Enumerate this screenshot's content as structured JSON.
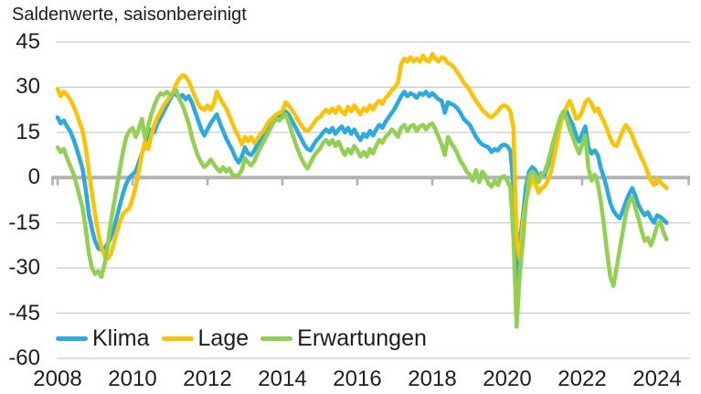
{
  "chart_data": {
    "type": "line",
    "title": "Saldenwerte, saisonbereinigt",
    "xlabel": "",
    "ylabel": "",
    "x_start_year": 2008,
    "x_step_months": 1,
    "x_end": "2024-04",
    "xlim": [
      2007.8,
      2024.9
    ],
    "ylim": [
      -60,
      45
    ],
    "y_ticks": [
      45,
      30,
      15,
      0,
      -15,
      -30,
      -45,
      -60
    ],
    "x_ticks": [
      2008,
      2010,
      2012,
      2014,
      2016,
      2018,
      2020,
      2022,
      2024
    ],
    "x_tick_labels": [
      "2008",
      "2010",
      "2012",
      "2014",
      "2016",
      "2018",
      "2020",
      "2022",
      "2024"
    ],
    "grid": "horizontal",
    "legend_position": "inside-bottom-left",
    "colors": {
      "grid": "#cccccc",
      "zero_axis": "#b3b3b3",
      "text": "#1d1d1b",
      "background": "#ffffff"
    },
    "series": [
      {
        "name": "Klima",
        "color": "#29abe2",
        "values": [
          20,
          18,
          19,
          17,
          15.5,
          13,
          10,
          6.5,
          3,
          -4,
          -12,
          -17,
          -21,
          -23.5,
          -24,
          -23.5,
          -22,
          -20,
          -17,
          -13,
          -9,
          -5,
          -2,
          0,
          1,
          2,
          5,
          8,
          11,
          14,
          16,
          15,
          18,
          20,
          22,
          24,
          26,
          28,
          27.5,
          26.5,
          27.5,
          26,
          27,
          25,
          22,
          19,
          16,
          14,
          16,
          18,
          19.5,
          21,
          18,
          15.5,
          13,
          11,
          9,
          6.5,
          5,
          7,
          10,
          8,
          7.5,
          9,
          11,
          12.5,
          14,
          15.5,
          17,
          18.5,
          19.5,
          20,
          20.5,
          22,
          21,
          19,
          17,
          15,
          13,
          11,
          9.5,
          9,
          11,
          12.5,
          13.5,
          15,
          16,
          15,
          16.5,
          14.5,
          16,
          17,
          15,
          16.5,
          14.5,
          16,
          14,
          12.5,
          14.5,
          13.5,
          15.5,
          14,
          16,
          17.5,
          16.5,
          18.5,
          20,
          21.5,
          23,
          25,
          27,
          28.5,
          27,
          28,
          27.5,
          26.5,
          28,
          27.5,
          28.5,
          27,
          28,
          27,
          26,
          25.5,
          21.5,
          25,
          24.5,
          24,
          23,
          21.5,
          19.5,
          18.5,
          17.5,
          15.5,
          13.5,
          12,
          11,
          10.5,
          10,
          8.5,
          9.5,
          9,
          10.5,
          11,
          10.5,
          9,
          -3,
          -34,
          -21,
          -13,
          -3,
          2,
          3.5,
          2.5,
          0,
          1.5,
          1,
          4,
          7.5,
          12,
          15.5,
          19.5,
          21.5,
          22,
          19.5,
          17.5,
          14,
          12,
          14.5,
          17,
          10,
          8,
          9,
          7.5,
          3,
          0,
          -4,
          -8.5,
          -11,
          -12.5,
          -13.5,
          -11,
          -8,
          -5.5,
          -3.5,
          -6,
          -9,
          -11,
          -12.5,
          -11.5,
          -13.5,
          -15,
          -12.5,
          -13,
          -14,
          -15
        ]
      },
      {
        "name": "Lage",
        "color": "#fdc300",
        "values": [
          29.5,
          27,
          28.5,
          27.5,
          26,
          24,
          21.5,
          18.5,
          15.5,
          10,
          2,
          -5,
          -12,
          -18,
          -23,
          -26,
          -27,
          -25.5,
          -22,
          -18,
          -14.5,
          -12,
          -11,
          -10,
          -7,
          -3,
          2,
          8,
          12,
          9.5,
          14,
          17.5,
          20,
          22,
          24,
          25.5,
          27,
          28.5,
          31,
          33,
          34,
          33.5,
          32,
          29.5,
          27,
          24.5,
          23,
          22.5,
          24,
          22.5,
          24.5,
          28.5,
          26.5,
          24.5,
          23,
          20.5,
          18,
          15.5,
          13.5,
          11,
          13.5,
          12,
          13.5,
          11.5,
          13,
          14.5,
          15.5,
          17.5,
          19,
          20,
          21,
          21.5,
          22,
          25,
          24,
          22.5,
          21,
          19,
          17.5,
          16,
          15.5,
          16.5,
          18,
          19.5,
          20,
          21.5,
          22.5,
          21.5,
          23,
          21.5,
          23.5,
          22,
          21,
          23.5,
          22,
          24,
          22.5,
          21,
          23,
          22,
          24,
          22.5,
          24.5,
          25.5,
          24.5,
          26.5,
          27.5,
          29,
          30,
          31.5,
          37.5,
          39.5,
          38.5,
          40,
          38.5,
          39.5,
          38.5,
          40.5,
          39,
          38.5,
          41,
          39.5,
          38.5,
          40,
          39.5,
          38,
          37.5,
          36.5,
          35,
          33.5,
          31.5,
          30.5,
          29,
          27,
          25.5,
          24,
          22.5,
          21.5,
          20.5,
          20,
          21,
          22,
          23.5,
          24,
          23.5,
          22,
          16.5,
          -21,
          -27,
          -15,
          -8,
          -3.5,
          -0.5,
          -2,
          -5,
          -3.5,
          -3,
          -1,
          2,
          7,
          12,
          17.5,
          21,
          23.5,
          25.5,
          23,
          19.5,
          20,
          22,
          25,
          26,
          24.5,
          22,
          23,
          20.5,
          18.5,
          16,
          13,
          11,
          10.5,
          13,
          15.5,
          17.5,
          16,
          14,
          11,
          9,
          6.5,
          4.5,
          1.5,
          -1,
          -2.5,
          -0.5,
          -1.5,
          -2.5,
          -3.5
        ]
      },
      {
        "name": "Erwartungen",
        "color": "#92d050",
        "values": [
          10,
          8.5,
          9.5,
          6.5,
          4,
          1.5,
          -2,
          -6,
          -10,
          -17,
          -25,
          -30,
          -32,
          -31,
          -33,
          -29,
          -23,
          -15,
          -9,
          -3,
          3,
          9,
          13.5,
          15.5,
          16.5,
          13.5,
          16,
          19.5,
          13,
          17,
          21,
          24,
          26.5,
          28,
          27.5,
          28.5,
          27.5,
          28,
          29,
          26,
          24,
          21,
          18,
          13.5,
          10,
          7,
          5,
          3.5,
          4.5,
          6,
          4.5,
          3,
          2,
          3.5,
          2,
          3,
          1,
          0.5,
          1,
          2.5,
          6.5,
          5,
          4,
          5.5,
          8,
          10,
          12,
          14,
          16,
          18,
          19.5,
          19,
          20,
          21,
          18.5,
          15,
          12,
          9,
          6.5,
          4.5,
          3,
          5,
          7,
          8.5,
          9.5,
          11.5,
          12.5,
          11,
          12.5,
          10.5,
          12,
          9.5,
          7.5,
          9.5,
          8,
          10.5,
          9,
          7,
          8.5,
          7,
          9.5,
          8,
          10.5,
          12.5,
          11.5,
          13.5,
          14.5,
          16,
          15,
          13.5,
          16.5,
          17.5,
          15.5,
          17,
          17.5,
          15.5,
          17,
          17.5,
          16,
          17.5,
          18,
          16,
          13.5,
          11,
          7.5,
          13.5,
          11.5,
          10,
          8,
          5.5,
          4,
          2,
          1,
          -1,
          2.5,
          -1.5,
          2,
          0.5,
          -2,
          -3,
          -1,
          -2.5,
          0,
          0.5,
          -1,
          -3,
          -20,
          -49.5,
          -32,
          -21,
          -8.5,
          0.5,
          2,
          1,
          -1.5,
          1,
          2,
          5,
          9,
          13,
          16.5,
          20,
          22,
          19.5,
          16,
          13.5,
          10.5,
          8,
          11,
          14,
          3,
          -1,
          1,
          -2,
          -8,
          -16,
          -25,
          -33,
          -36,
          -30,
          -24,
          -18,
          -12,
          -8,
          -6.5,
          -10,
          -13.5,
          -17.5,
          -21,
          -20,
          -22.5,
          -19.5,
          -16,
          -14.5,
          -18,
          -20.5
        ]
      }
    ]
  }
}
